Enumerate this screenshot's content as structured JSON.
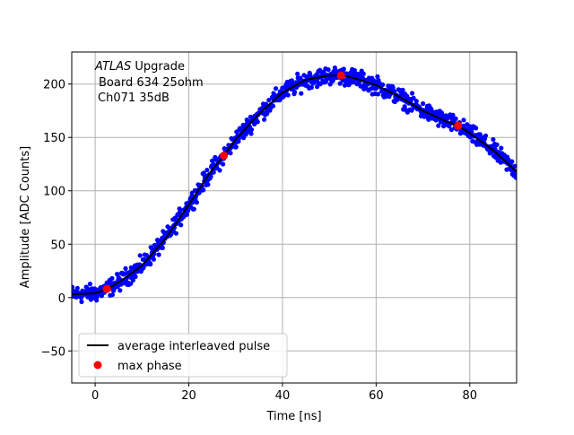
{
  "chart_data": {
    "type": "scatter",
    "title": "",
    "xlabel": "Time [ns]",
    "ylabel": "Amplitude [ADC Counts]",
    "xlim": [
      -5,
      90
    ],
    "ylim": [
      -80,
      230
    ],
    "xticks": [
      0,
      20,
      40,
      60,
      80
    ],
    "yticks": [
      -50,
      0,
      50,
      100,
      150,
      200
    ],
    "grid": true,
    "legend_position": "bottom-left",
    "annotation": {
      "italic_prefix": "ATLAS",
      "line1_rest": " Upgrade",
      "line2": "Board 634 25ohm",
      "line3": "Ch071 35dB"
    },
    "colors": {
      "samples": "#0000ff",
      "average": "#000000",
      "max_phase": "#ff0000",
      "grid": "#b0b0b0"
    },
    "series": [
      {
        "name": "samples",
        "kind": "scatter",
        "label": "",
        "noise_amplitude": 4,
        "x_step": 0.1,
        "x_range": [
          -5,
          90
        ]
      },
      {
        "name": "average interleaved pulse",
        "kind": "line",
        "label": "average interleaved pulse",
        "x": [
          -5,
          0,
          2.5,
          5,
          10,
          15,
          20,
          25,
          27.5,
          30,
          35,
          40,
          45,
          50,
          52.5,
          55,
          60,
          65,
          70,
          75,
          77.5,
          80,
          85,
          90
        ],
        "y": [
          3,
          4,
          8,
          14,
          30,
          55,
          87,
          120,
          133,
          148,
          172,
          192,
          204,
          208,
          208,
          206,
          199,
          188,
          175,
          165,
          161,
          154,
          138,
          118
        ]
      },
      {
        "name": "max phase",
        "kind": "points",
        "label": "max phase",
        "x": [
          2.5,
          27.5,
          52.5,
          77.5
        ],
        "y": [
          8,
          133,
          208,
          161
        ]
      }
    ]
  }
}
